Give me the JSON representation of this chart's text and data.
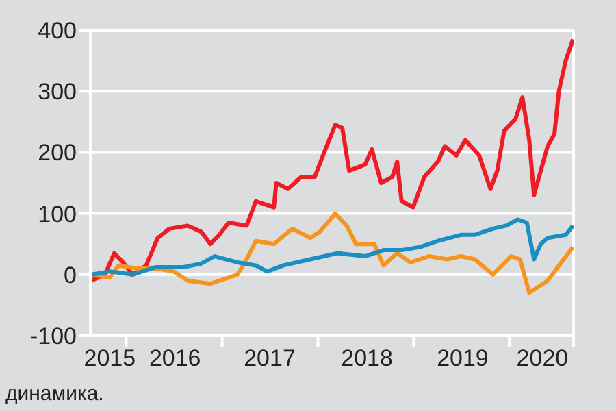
{
  "chart_data": {
    "type": "line",
    "annotations": [
      "динамика."
    ],
    "xlim": [
      "2015-08-17",
      "2020-09-02"
    ],
    "xticks": [
      {
        "value": "2015-10-30",
        "label": "2015"
      },
      {
        "value": "2016-01-01",
        "label": null
      },
      {
        "value": "2016-07-05",
        "label": "2016"
      },
      {
        "value": "2017-01-01",
        "label": null
      },
      {
        "value": "2017-07-01",
        "label": "2017"
      },
      {
        "value": "2018-01-01",
        "label": null
      },
      {
        "value": "2018-07-07",
        "label": "2018"
      },
      {
        "value": "2019-01-01",
        "label": null
      },
      {
        "value": "2019-07-07",
        "label": "2019"
      },
      {
        "value": "2020-01-01",
        "label": null
      },
      {
        "value": "2020-05-06",
        "label": "2020"
      }
    ],
    "ylim": [
      -100,
      400
    ],
    "yticks": [
      -100,
      0,
      100,
      200,
      300,
      400
    ],
    "grid": "y",
    "marker": "none",
    "line_style": "solid",
    "series": [
      {
        "color": "#ee1c25",
        "x": [
          "2015-08-20",
          "2015-10-12",
          "2015-11-16",
          "2015-12-20",
          "2016-01-25",
          "2016-03-17",
          "2016-04-30",
          "2016-06-13",
          "2016-08-22",
          "2016-10-13",
          "2016-11-17",
          "2016-12-21",
          "2017-01-25",
          "2017-04-04",
          "2017-05-09",
          "2017-07-17",
          "2017-07-26",
          "2017-09-08",
          "2017-10-30",
          "2017-12-20",
          "2018-01-25",
          "2018-03-08",
          "2018-04-04",
          "2018-04-30",
          "2018-06-30",
          "2018-07-26",
          "2018-08-30",
          "2018-10-12",
          "2018-10-30",
          "2018-11-16",
          "2018-12-30",
          "2019-02-11",
          "2019-04-04",
          "2019-04-30",
          "2019-06-13",
          "2019-07-17",
          "2019-09-08",
          "2019-10-21",
          "2019-11-16",
          "2019-12-12",
          "2020-01-25",
          "2020-02-20",
          "2020-03-17",
          "2020-04-04",
          "2020-04-30",
          "2020-05-26",
          "2020-06-21",
          "2020-07-08",
          "2020-08-03",
          "2020-08-31"
        ],
        "values": [
          -10,
          0,
          35,
          20,
          0,
          15,
          60,
          75,
          80,
          70,
          50,
          65,
          85,
          80,
          120,
          110,
          150,
          140,
          160,
          160,
          200,
          245,
          240,
          170,
          180,
          205,
          150,
          160,
          185,
          120,
          110,
          160,
          185,
          210,
          195,
          220,
          195,
          140,
          170,
          235,
          255,
          290,
          220,
          130,
          170,
          210,
          230,
          300,
          350,
          385
        ]
      },
      {
        "color": "#f7941d",
        "x": [
          "2015-08-20",
          "2015-10-30",
          "2015-12-03",
          "2016-02-11",
          "2016-04-21",
          "2016-06-30",
          "2016-08-22",
          "2016-11-17",
          "2017-01-25",
          "2017-02-28",
          "2017-04-04",
          "2017-05-09",
          "2017-07-17",
          "2017-09-25",
          "2017-12-03",
          "2018-01-08",
          "2018-03-08",
          "2018-04-21",
          "2018-05-26",
          "2018-08-04",
          "2018-09-08",
          "2018-10-30",
          "2018-12-20",
          "2019-02-28",
          "2019-05-09",
          "2019-06-30",
          "2019-08-22",
          "2019-10-30",
          "2020-01-08",
          "2020-02-11",
          "2020-03-17",
          "2020-05-26",
          "2020-06-30",
          "2020-08-31"
        ],
        "values": [
          0,
          -5,
          15,
          10,
          10,
          5,
          -10,
          -15,
          -5,
          0,
          25,
          55,
          50,
          75,
          60,
          70,
          100,
          80,
          50,
          50,
          15,
          35,
          20,
          30,
          25,
          30,
          25,
          0,
          30,
          25,
          -30,
          -10,
          10,
          45
        ]
      },
      {
        "color": "#1b8ec2",
        "x": [
          "2015-08-20",
          "2015-10-30",
          "2016-01-25",
          "2016-04-21",
          "2016-08-04",
          "2016-10-13",
          "2016-12-03",
          "2017-02-28",
          "2017-05-09",
          "2017-06-21",
          "2017-08-22",
          "2017-12-03",
          "2018-03-17",
          "2018-06-30",
          "2018-09-08",
          "2018-11-16",
          "2019-01-25",
          "2019-04-04",
          "2019-06-30",
          "2019-08-22",
          "2019-10-30",
          "2019-12-20",
          "2020-02-02",
          "2020-03-08",
          "2020-04-04",
          "2020-04-30",
          "2020-05-26",
          "2020-08-03",
          "2020-08-31"
        ],
        "values": [
          0,
          5,
          0,
          12,
          12,
          18,
          30,
          20,
          15,
          5,
          15,
          25,
          35,
          30,
          40,
          40,
          45,
          55,
          65,
          65,
          75,
          80,
          90,
          85,
          25,
          50,
          60,
          65,
          80
        ]
      }
    ]
  }
}
